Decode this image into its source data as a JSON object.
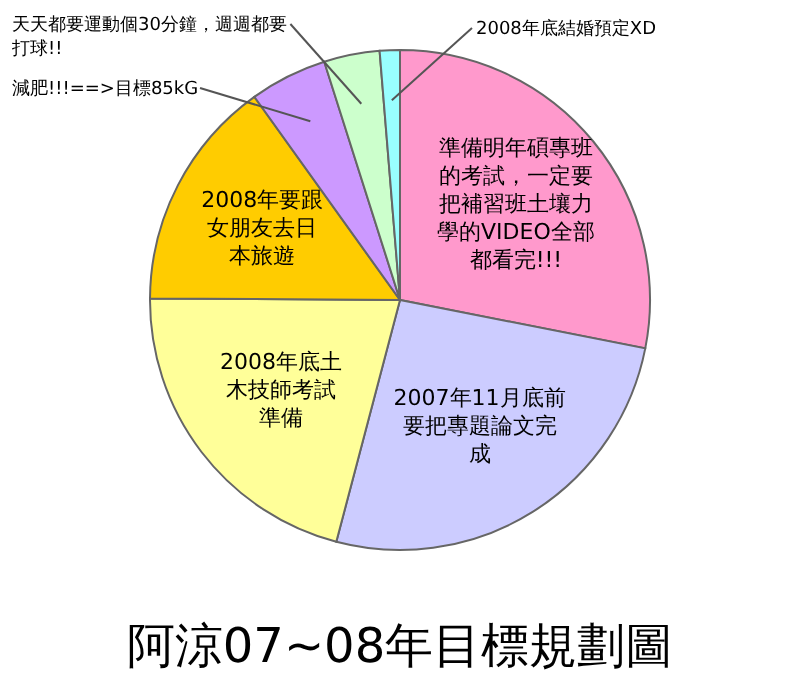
{
  "chart_data": {
    "type": "pie",
    "title": "阿涼07~08年目標規劃圖",
    "categories": [
      "準備明年碩專班的考試，一定要把補習班土壤力學的VIDEO全部都看完!!!",
      "2007年11月底前要把專題論文完成",
      "2008年底土木技師考試準備",
      "2008年要跟女朋友去日本旅遊",
      "減肥!!!==>目標85kG",
      "天天都要運動個30分鐘，週週都要打球!!",
      "2008年底結婚預定XD"
    ],
    "values": [
      28.1,
      26,
      21,
      15,
      5,
      3.6,
      1.3
    ],
    "colors": [
      "#ff99cc",
      "#ccccff",
      "#ffff99",
      "#ffcc00",
      "#cc99ff",
      "#ccffcc",
      "#99ffff"
    ]
  }
}
